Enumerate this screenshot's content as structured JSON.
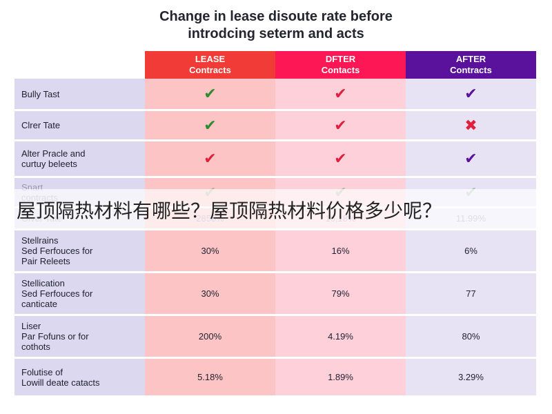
{
  "title_line1": "Change in lease disoute rate before",
  "title_line2": "introdcing seterm and acts",
  "headers": [
    {
      "label": "LEASE\nContracts",
      "color": "#f03b36"
    },
    {
      "label": "DFTER\nContacts",
      "color": "#fd1755"
    },
    {
      "label": "AFTER\nContracts",
      "color": "#5a119c"
    }
  ],
  "rows": [
    {
      "label": "Bully Tast",
      "cells": [
        {
          "icon": "check-icon",
          "text": "✔",
          "color": "#2e8b2e"
        },
        {
          "icon": "check-icon",
          "text": "✔",
          "color": "#e0203c"
        },
        {
          "icon": "check-icon",
          "text": "✔",
          "color": "#5a119c"
        }
      ]
    },
    {
      "label": "Clrer Tate",
      "cells": [
        {
          "icon": "check-icon",
          "text": "✔",
          "color": "#2e8b2e"
        },
        {
          "icon": "check-icon",
          "text": "✔",
          "color": "#e0203c"
        },
        {
          "icon": "cross-icon",
          "text": "✖",
          "color": "#e0203c"
        }
      ]
    },
    {
      "label": "Alter Pracle and\ncurtuy beleets",
      "cells": [
        {
          "icon": "check-icon",
          "text": "✔",
          "color": "#e0203c"
        },
        {
          "icon": "check-icon",
          "text": "✔",
          "color": "#e0203c"
        },
        {
          "icon": "check-icon",
          "text": "✔",
          "color": "#5a119c"
        }
      ]
    },
    {
      "label": "Snart\ncontracts",
      "faded": true,
      "cells": [
        {
          "icon": "check-icon",
          "text": "✔",
          "color": "#2e8b2e"
        },
        {
          "icon": "check-icon",
          "text": "✔",
          "color": "#2e8b2e"
        },
        {
          "icon": "check-icon",
          "text": "✔",
          "color": "#2e8b2e"
        }
      ]
    },
    {
      "label": "Olver Tate",
      "faded": true,
      "cells": [
        {
          "text": "2858%"
        },
        {
          "text": "16,18%"
        },
        {
          "text": "11.99%"
        }
      ]
    },
    {
      "label": "Stellrains\nSed Ferfouces for\nPair Releets",
      "cells": [
        {
          "text": "30%"
        },
        {
          "text": "16%"
        },
        {
          "text": "6%"
        }
      ]
    },
    {
      "label": "Stellication\nSed Ferfouces for\ncanticate",
      "cells": [
        {
          "text": "30%"
        },
        {
          "text": "79%"
        },
        {
          "text": "77"
        }
      ]
    },
    {
      "label": "Liser\nPar Fofuns or for\ncothots",
      "cells": [
        {
          "text": "200%"
        },
        {
          "text": "4.19%"
        },
        {
          "text": "80%"
        }
      ]
    },
    {
      "label": "Folutise of\nLowill deate catacts",
      "cells": [
        {
          "text": "5.18%"
        },
        {
          "text": "1.89%"
        },
        {
          "text": "3.29%"
        }
      ]
    }
  ],
  "overlay_text": "屋顶隔热材料有哪些？屋顶隔热材料价格多少呢？"
}
